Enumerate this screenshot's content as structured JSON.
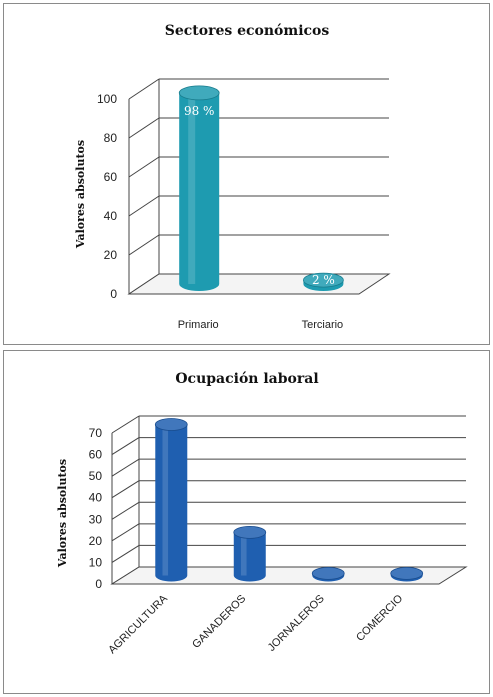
{
  "chart_data": [
    {
      "type": "bar",
      "title": "Sectores económicos",
      "ylabel": "Valores absolutos",
      "xlabel": "",
      "categories": [
        "Primario",
        "Terciario"
      ],
      "values": [
        98,
        2
      ],
      "data_labels": [
        "98 %",
        "2 %"
      ],
      "yticks": [
        0,
        20,
        40,
        60,
        80,
        100
      ],
      "ylim": [
        0,
        100
      ],
      "grid": true,
      "style": "3d-cylinder",
      "bar_color": "#1e9bb0"
    },
    {
      "type": "bar",
      "title": "Ocupación laboral",
      "ylabel": "Valores absolutos",
      "xlabel": "",
      "categories": [
        "AGRICULTURA",
        "GANADEROS",
        "JORNALEROS",
        "COMERCIO"
      ],
      "values": [
        70,
        20,
        1,
        1
      ],
      "yticks": [
        0,
        10,
        20,
        30,
        40,
        50,
        60,
        70
      ],
      "ylim": [
        0,
        70
      ],
      "grid": true,
      "style": "3d-cylinder",
      "bar_color": "#1f5fb0"
    }
  ]
}
